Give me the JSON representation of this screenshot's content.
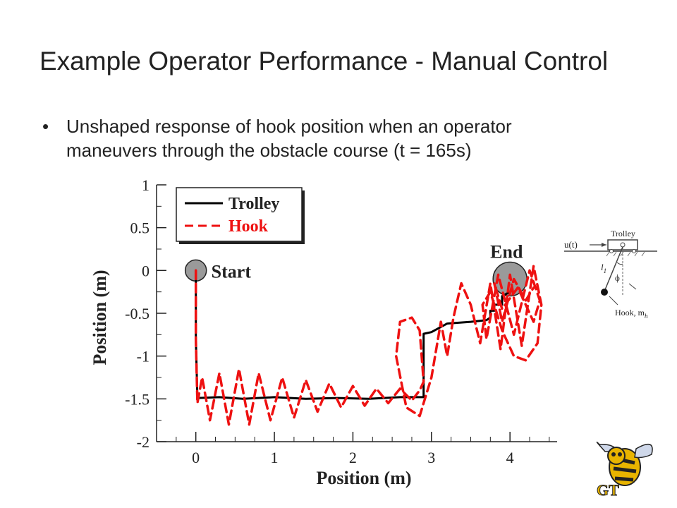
{
  "slide": {
    "title": "Example Operator Performance - Manual Control",
    "bullet_line1": "Unshaped response of hook position when an operator",
    "bullet_line2": "maneuvers through the obstacle course (t = 165s)"
  },
  "chart_data": {
    "type": "line",
    "xlabel": "Position (m)",
    "ylabel": "Position (m)",
    "xlim": [
      -0.5,
      4.6
    ],
    "ylim": [
      -2,
      1
    ],
    "x_ticks": [
      0,
      1,
      2,
      3,
      4
    ],
    "y_ticks": [
      1,
      0.5,
      0,
      -0.5,
      -1,
      -1.5,
      -2
    ],
    "x_tick_labels": [
      "0",
      "1",
      "2",
      "3",
      "4"
    ],
    "y_tick_labels": [
      "1",
      "0.5",
      "0",
      "-0.5",
      "-1",
      "-1.5",
      "-2"
    ],
    "legend_position": "top-left",
    "series": [
      {
        "name": "Trolley",
        "color": "#000000",
        "style": "solid",
        "x": [
          0,
          0,
          0.02,
          0.3,
          0.6,
          1.0,
          1.4,
          1.8,
          2.2,
          2.6,
          2.9,
          2.9,
          3.0,
          3.2,
          3.5,
          3.7,
          3.75,
          3.75,
          3.8,
          3.8,
          3.9,
          3.9,
          4.0
        ],
        "y": [
          0,
          -0.8,
          -1.49,
          -1.48,
          -1.5,
          -1.48,
          -1.5,
          -1.49,
          -1.5,
          -1.48,
          -1.48,
          -0.74,
          -0.72,
          -0.62,
          -0.6,
          -0.58,
          -0.55,
          -0.47,
          -0.47,
          -0.4,
          -0.4,
          -0.3,
          -0.25
        ]
      },
      {
        "name": "Hook",
        "color": "#ee1111",
        "style": "dashed",
        "x": [
          0,
          0,
          0.02,
          0.08,
          0.18,
          0.3,
          0.42,
          0.55,
          0.68,
          0.8,
          0.95,
          1.1,
          1.25,
          1.4,
          1.55,
          1.7,
          1.85,
          2.0,
          2.15,
          2.3,
          2.45,
          2.6,
          2.75,
          2.85,
          2.9,
          2.85,
          2.75,
          2.6,
          2.55,
          2.68,
          2.85,
          3.0,
          3.12,
          3.2,
          3.28,
          3.38,
          3.5,
          3.62,
          3.75,
          3.88,
          4.0,
          4.15,
          4.3,
          4.4,
          4.35,
          4.2,
          4.05,
          3.9,
          3.75,
          3.65,
          3.7,
          3.85,
          4.05,
          4.25,
          4.38,
          4.3,
          4.1,
          3.9,
          3.8,
          3.9,
          4.05,
          4.2,
          4.3
        ],
        "y": [
          0,
          -0.8,
          -1.55,
          -1.25,
          -1.75,
          -1.2,
          -1.8,
          -1.15,
          -1.8,
          -1.2,
          -1.75,
          -1.25,
          -1.72,
          -1.28,
          -1.65,
          -1.32,
          -1.6,
          -1.35,
          -1.58,
          -1.38,
          -1.55,
          -1.38,
          -1.52,
          -1.4,
          -1.3,
          -0.7,
          -0.55,
          -0.6,
          -1.0,
          -1.6,
          -1.7,
          -1.25,
          -0.6,
          -1.0,
          -0.55,
          -0.15,
          -0.4,
          -0.85,
          -0.15,
          -0.92,
          -0.05,
          -0.88,
          0.05,
          -0.4,
          -0.85,
          -1.05,
          -1.0,
          -0.7,
          -0.25,
          -0.4,
          -0.8,
          -0.05,
          -0.75,
          0.0,
          -0.35,
          -0.6,
          -0.2,
          -0.45,
          -0.15,
          -0.6,
          -0.1,
          -0.35,
          -0.2
        ]
      }
    ],
    "annotations": [
      {
        "text": "Start",
        "x": 0,
        "y": 0
      },
      {
        "text": "End",
        "x": 4.0,
        "y": -0.1
      }
    ]
  },
  "inset": {
    "input_label": "u(t)",
    "trolley_label": "Trolley",
    "length_label": "l",
    "length_subscript": "1",
    "angle_label": "ϕ",
    "hook_label": "Hook, m",
    "hook_subscript": "h"
  },
  "logo": {
    "letters": "GT"
  }
}
